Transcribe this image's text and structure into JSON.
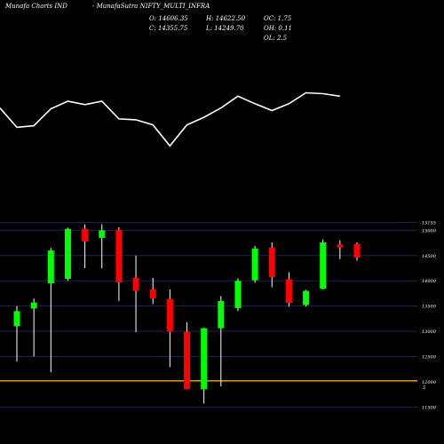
{
  "header": {
    "brand": "Munafa Charts IND",
    "symbol_line": "-  MunafaSutra NIFTY_MULTI_INFRA",
    "open_label": "O: 14606.35",
    "close_label": "C: 14355.75",
    "high_label": "H: 14622.50",
    "low_label": "L: 14249.70",
    "oc_label": "OC: 1.75",
    "oh_label": "OH: 0.11",
    "ol_label": "OL: 2.5"
  },
  "colors": {
    "up": "#00ff00",
    "down": "#ff0000",
    "wick": "#ffffff",
    "line": "#ffffff",
    "grid": "#1a2550",
    "reference": "#d98b00"
  },
  "chart_data": [
    {
      "type": "line",
      "title": "",
      "values": [
        72,
        49,
        51,
        71,
        80,
        76,
        80,
        59,
        58,
        52,
        27,
        52,
        61,
        72,
        86,
        77,
        69,
        77,
        90,
        89,
        86
      ]
    },
    {
      "type": "candlestick",
      "ylim": [
        11400,
        15200
      ],
      "yticks": [
        "15155",
        "15000",
        "14500",
        "14000",
        "13500",
        "13000",
        "12500",
        "12000",
        "11500"
      ],
      "reference_value": 12020,
      "reference_label": "5",
      "candles": [
        {
          "o": 13100,
          "h": 13500,
          "l": 12400,
          "c": 13400
        },
        {
          "o": 13450,
          "h": 13650,
          "l": 12500,
          "c": 13570
        },
        {
          "o": 13950,
          "h": 14650,
          "l": 12190,
          "c": 14600
        },
        {
          "o": 14040,
          "h": 15050,
          "l": 14000,
          "c": 15030
        },
        {
          "o": 15030,
          "h": 15120,
          "l": 14250,
          "c": 14780
        },
        {
          "o": 14850,
          "h": 15120,
          "l": 14250,
          "c": 15000
        },
        {
          "o": 15010,
          "h": 15060,
          "l": 13600,
          "c": 13970
        },
        {
          "o": 14060,
          "h": 14500,
          "l": 12980,
          "c": 13800
        },
        {
          "o": 13830,
          "h": 14060,
          "l": 13540,
          "c": 13650
        },
        {
          "o": 13640,
          "h": 13830,
          "l": 12290,
          "c": 12990
        },
        {
          "o": 12990,
          "h": 13180,
          "l": 11850,
          "c": 11850
        },
        {
          "o": 11850,
          "h": 13070,
          "l": 11570,
          "c": 13060
        },
        {
          "o": 13060,
          "h": 13700,
          "l": 11910,
          "c": 13600
        },
        {
          "o": 13460,
          "h": 14050,
          "l": 13400,
          "c": 14000
        },
        {
          "o": 14010,
          "h": 14690,
          "l": 13960,
          "c": 14640
        },
        {
          "o": 14660,
          "h": 14760,
          "l": 13870,
          "c": 14070
        },
        {
          "o": 14030,
          "h": 14170,
          "l": 13490,
          "c": 13560
        },
        {
          "o": 13520,
          "h": 13820,
          "l": 13490,
          "c": 13800
        },
        {
          "o": 13840,
          "h": 14820,
          "l": 13830,
          "c": 14760
        },
        {
          "o": 14720,
          "h": 14800,
          "l": 14430,
          "c": 14660
        },
        {
          "o": 14730,
          "h": 14760,
          "l": 14400,
          "c": 14460
        }
      ]
    }
  ]
}
